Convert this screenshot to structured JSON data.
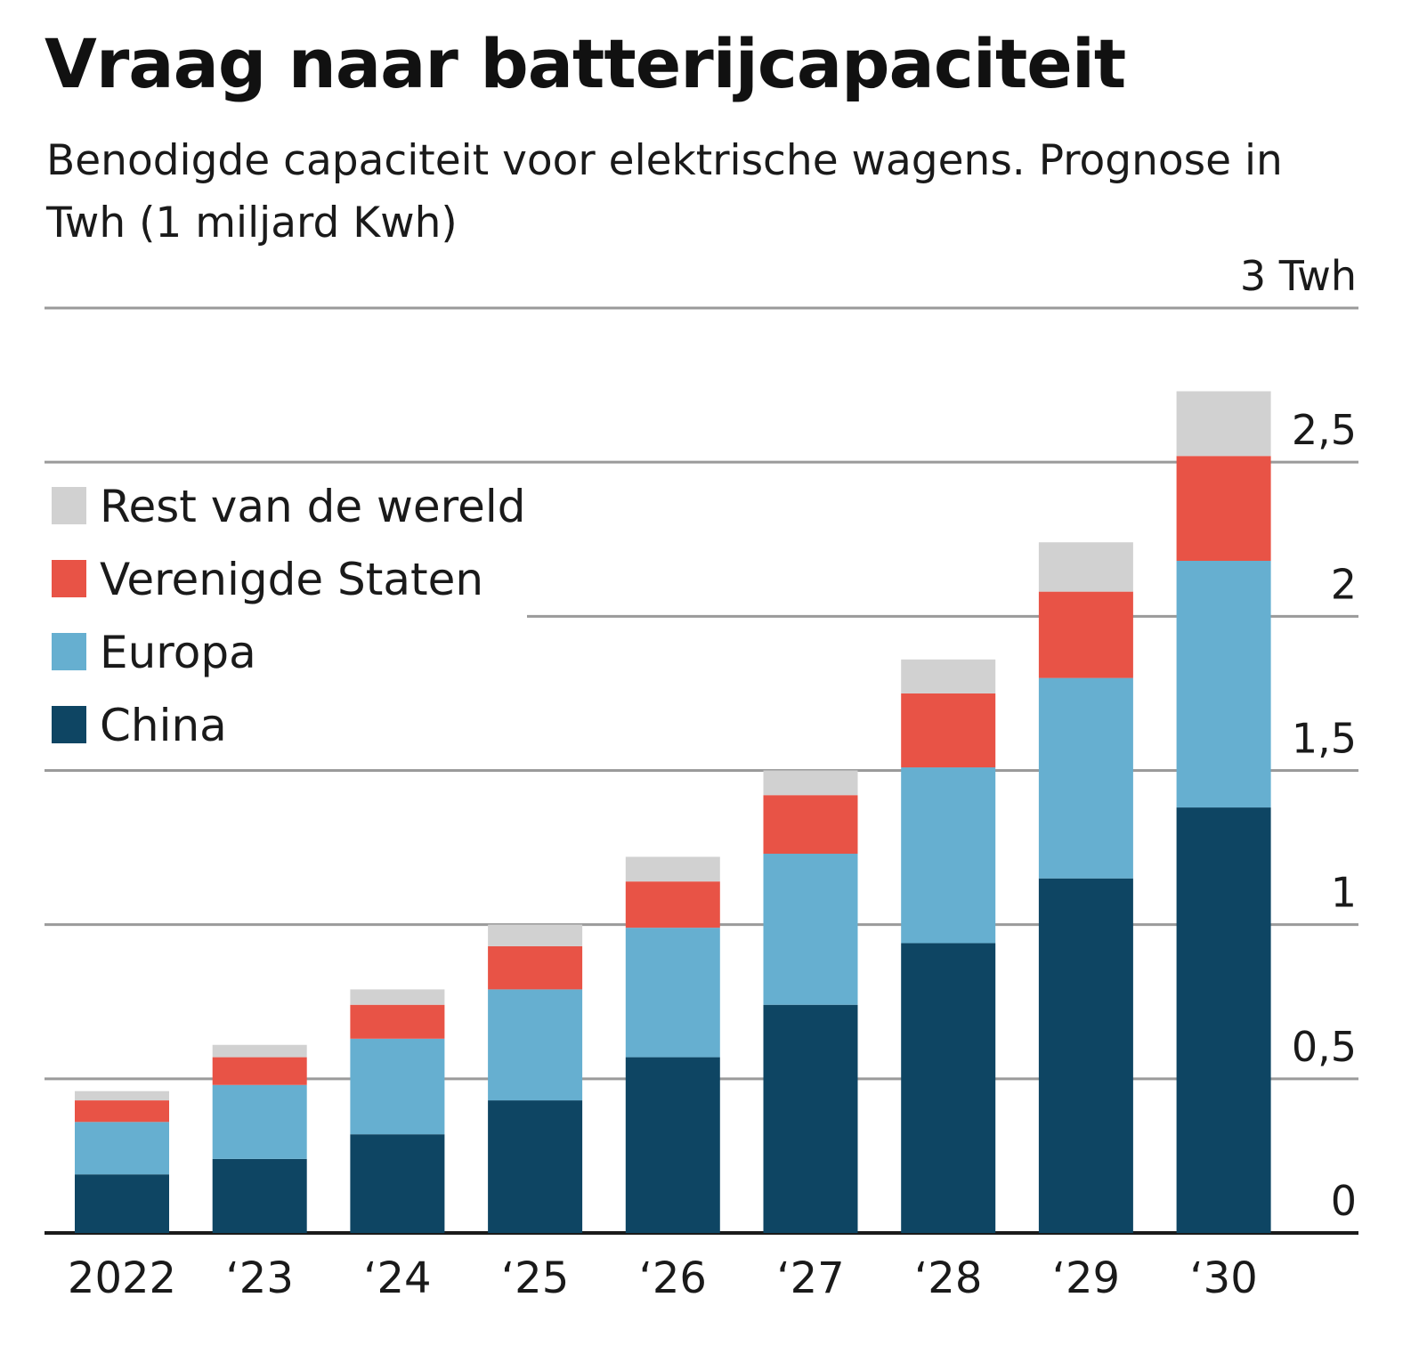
{
  "title": "Vraag naar batterijcapaciteit",
  "subtitle": "Benodigde capaciteit voor elektrische wagens. Prognose in Twh (1 miljard Kwh)",
  "chart_data": {
    "type": "bar",
    "stacked": true,
    "categories": [
      "2022",
      "‘23",
      "‘24",
      "‘25",
      "‘26",
      "‘27",
      "‘28",
      "‘29",
      "‘30"
    ],
    "series": [
      {
        "name": "China",
        "color": "#0e4563",
        "values": [
          0.19,
          0.24,
          0.32,
          0.43,
          0.57,
          0.74,
          0.94,
          1.15,
          1.38
        ]
      },
      {
        "name": "Europa",
        "color": "#66afd0",
        "values": [
          0.17,
          0.24,
          0.31,
          0.36,
          0.42,
          0.49,
          0.57,
          0.65,
          0.8
        ]
      },
      {
        "name": "Verenigde Staten",
        "color": "#e85346",
        "values": [
          0.07,
          0.09,
          0.11,
          0.14,
          0.15,
          0.19,
          0.24,
          0.28,
          0.34
        ]
      },
      {
        "name": "Rest van de wereld",
        "color": "#d1d1d1",
        "values": [
          0.03,
          0.04,
          0.05,
          0.07,
          0.08,
          0.08,
          0.11,
          0.16,
          0.21
        ]
      }
    ],
    "yticks": [
      {
        "value": 0,
        "label": "0"
      },
      {
        "value": 0.5,
        "label": "0,5"
      },
      {
        "value": 1,
        "label": "1"
      },
      {
        "value": 1.5,
        "label": "1,5"
      },
      {
        "value": 2,
        "label": "2"
      },
      {
        "value": 2.5,
        "label": "2,5"
      },
      {
        "value": 3,
        "label": "3 Twh"
      }
    ],
    "ylim": [
      0,
      3
    ],
    "grid": true,
    "legend": {
      "position": "top-left",
      "entries": [
        "Rest van de wereld",
        "Verenigde Staten",
        "Europa",
        "China"
      ]
    }
  }
}
